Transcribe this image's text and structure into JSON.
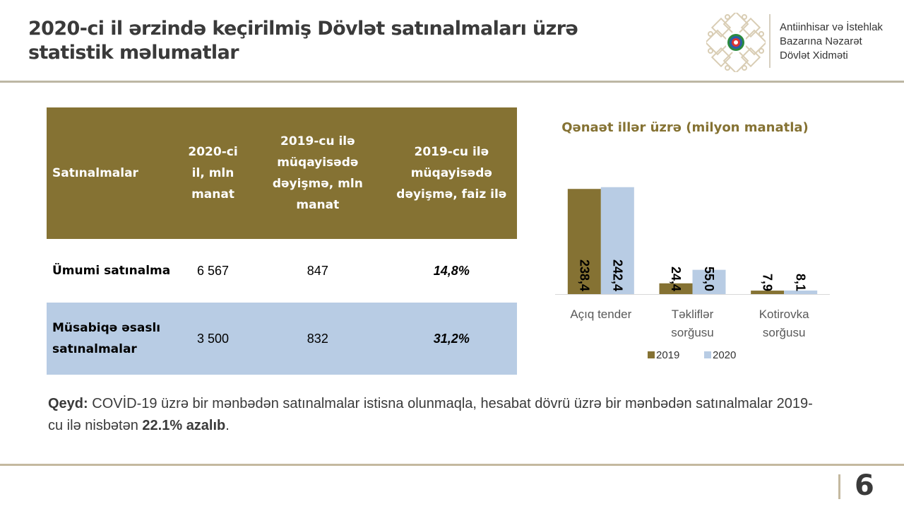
{
  "header": {
    "title": "2020-ci il ərzində keçirilmiş Dövlət satınalmaları üzrə statistik məlumatlar",
    "org_lines": [
      "Antiinhisar və İstehlak",
      "Bazarına Nəzarət",
      "Dövlət Xidməti"
    ],
    "logo_icon": "state-emblem-ornament-icon"
  },
  "table": {
    "headers": [
      "Satınalmalar",
      "2020-ci il, mln manat",
      "2019-cu ilə müqayisədə dəyişmə, mln manat",
      "2019-cu ilə müqayisədə dəyişmə, faiz ilə"
    ],
    "rows": [
      {
        "label": "Ümumi satınalma",
        "value_2020": "6 567",
        "change_mln": "847",
        "change_pct": "14,8%"
      },
      {
        "label": "Müsabiqə əsaslı satınalmalar",
        "value_2020": "3 500",
        "change_mln": "832",
        "change_pct": "31,2%"
      }
    ]
  },
  "chart_data": {
    "type": "bar",
    "title": "Qənaət illər üzrə (milyon manatla)",
    "categories": [
      "Açıq tender",
      "Təkliflər sorğusu",
      "Kotirovka sorğusu"
    ],
    "series": [
      {
        "name": "2019",
        "color": "#857233",
        "values": [
          238.4,
          24.4,
          7.9
        ],
        "labels": [
          "238,4",
          "24,4",
          "7,9"
        ]
      },
      {
        "name": "2020",
        "color": "#b8cce4",
        "values": [
          242.4,
          55.0,
          8.1
        ],
        "labels": [
          "242,4",
          "55,0",
          "8,1"
        ]
      }
    ],
    "xlabel": "",
    "ylabel": "",
    "ylim": [
      0,
      250
    ],
    "grid": false,
    "legend": "bottom"
  },
  "note": {
    "label": "Qeyd:",
    "text": " COVİD-19 üzrə bir mənbədən satınalmalar istisna olunmaqla, hesabat dövrü üzrə bir mənbədən satınalmalar 2019-cu ilə nisbətən ",
    "highlight": "22.1% azalıb",
    "end": "."
  },
  "page": {
    "number": "6"
  }
}
